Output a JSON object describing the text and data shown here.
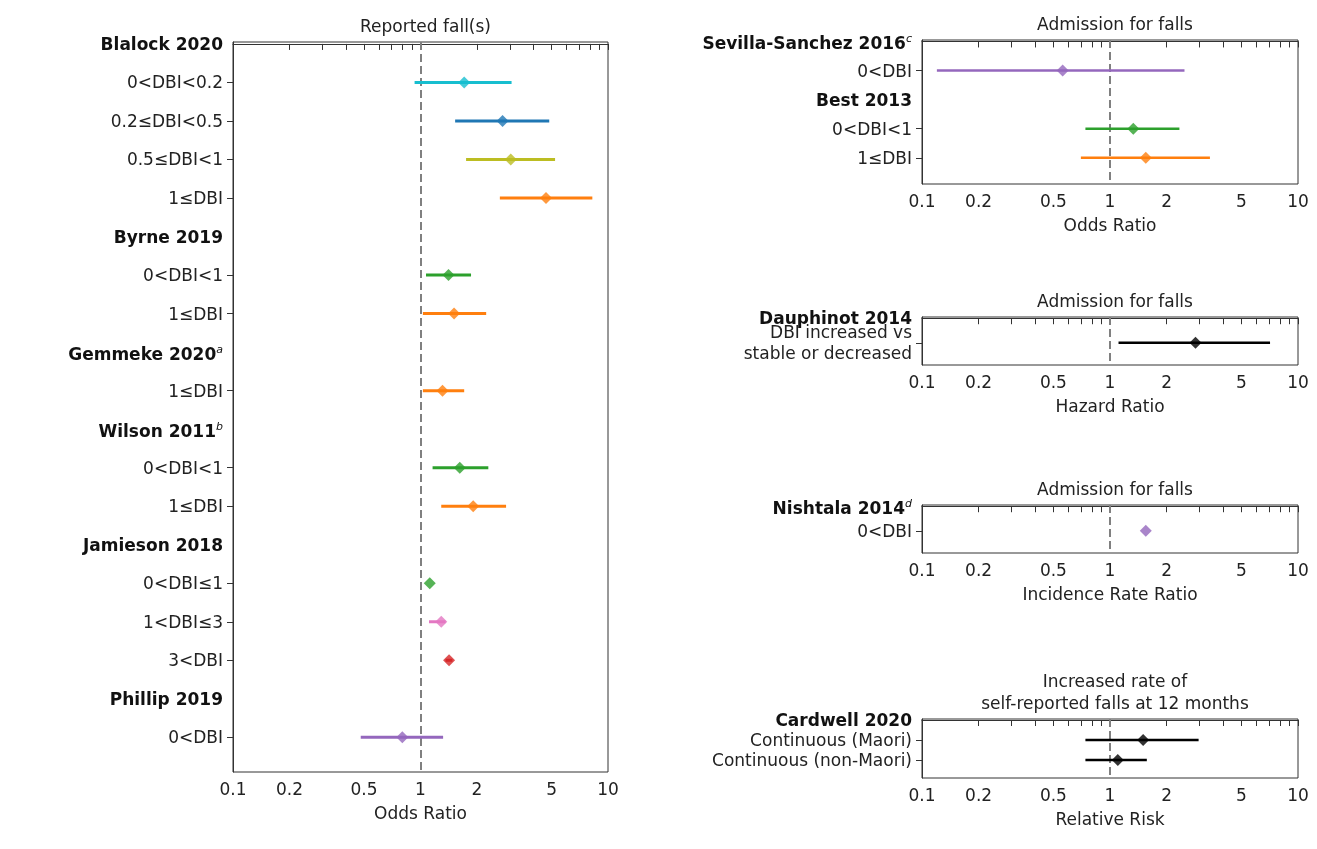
{
  "chart_data": [
    {
      "type": "scatter",
      "orientation": "horizontal",
      "title": "Reported fall(s)",
      "xlabel": "Odds Ratio",
      "log": "x",
      "marker": "diamond",
      "categories": [
        "Blalock 2020",
        "0<DBI<0.2",
        "0.2≤DBI<0.5",
        "0.5≤DBI<1",
        "1≤DBI",
        "Byrne 2019",
        "0<DBI<1",
        "1≤DBI",
        "Gemmeke 2020$^{a}$",
        "1≤DBI",
        "Wilson 2011$^{b}$",
        "0<DBI<1",
        "1≤DBI",
        "Jamieson 2018",
        "0<DBI≤1",
        "1<DBI≤3",
        "3<DBI",
        "Phillip 2019",
        "0<DBI"
      ],
      "values": [
        null,
        1.71,
        2.74,
        3.03,
        4.67,
        null,
        1.41,
        1.51,
        null,
        1.31,
        null,
        1.62,
        1.91,
        null,
        1.12,
        1.29,
        1.42,
        null,
        0.8
      ],
      "errors": [
        null,
        [
          0.93,
          3.06
        ],
        [
          1.53,
          4.86
        ],
        [
          1.75,
          5.22
        ],
        [
          2.65,
          8.25
        ],
        null,
        [
          1.07,
          1.86
        ],
        [
          1.03,
          2.24
        ],
        null,
        [
          1.03,
          1.71
        ],
        null,
        [
          1.16,
          2.3
        ],
        [
          1.29,
          2.86
        ],
        null,
        null,
        [
          1.11,
          1.36
        ],
        [
          1.36,
          1.48
        ],
        null,
        [
          0.48,
          1.32
        ]
      ],
      "colors": [
        null,
        "#17becf",
        "#1f77b4",
        "#bcbd22",
        "#ff7f0e",
        null,
        "#2ca02c",
        "#ff7f0e",
        null,
        "#ff7f0e",
        null,
        "#2ca02c",
        "#ff7f0e",
        null,
        "#2ca02c",
        "#e377c2",
        "#d62728",
        null,
        "#9467bd"
      ],
      "xlim": [
        0.1,
        10
      ],
      "xticks": [
        0.1,
        0.2,
        {
          "value": 0.3,
          "label": null
        },
        {
          "value": 0.4,
          "label": null
        },
        0.5,
        {
          "value": 0.6,
          "label": null
        },
        {
          "value": 0.7,
          "label": null
        },
        {
          "value": 0.8,
          "label": null
        },
        {
          "value": 0.9,
          "label": null
        },
        1,
        2,
        {
          "value": 3,
          "label": null
        },
        {
          "value": 4,
          "label": null
        },
        5,
        {
          "value": 6,
          "label": null
        },
        {
          "value": 7,
          "label": null
        },
        {
          "value": 8,
          "label": null
        },
        {
          "value": 9,
          "label": null
        },
        10
      ],
      "ref_lines": [
        {
          "axis": "x",
          "value": 1,
          "line_style": "dashed",
          "color": "#808080"
        }
      ]
    },
    {
      "type": "scatter",
      "orientation": "horizontal",
      "title": "Admission for falls",
      "xlabel": "Odds Ratio",
      "log": "x",
      "marker": "diamond",
      "categories": [
        "Sevilla-Sanchez 2016$^{c}$",
        "0<DBI",
        "Best 2013",
        "0<DBI<1",
        "1≤DBI"
      ],
      "values": [
        null,
        0.56,
        null,
        1.33,
        1.55
      ],
      "errors": [
        null,
        [
          0.12,
          2.49
        ],
        null,
        [
          0.74,
          2.34
        ],
        [
          0.7,
          3.4
        ]
      ],
      "colors": [
        null,
        "#9467bd",
        null,
        "#2ca02c",
        "#ff7f0e"
      ],
      "xlim": [
        0.1,
        10
      ],
      "xticks": [
        0.1,
        0.2,
        {
          "value": 0.3,
          "label": null
        },
        {
          "value": 0.4,
          "label": null
        },
        0.5,
        {
          "value": 0.6,
          "label": null
        },
        {
          "value": 0.7,
          "label": null
        },
        {
          "value": 0.8,
          "label": null
        },
        {
          "value": 0.9,
          "label": null
        },
        1,
        2,
        {
          "value": 3,
          "label": null
        },
        {
          "value": 4,
          "label": null
        },
        5,
        {
          "value": 6,
          "label": null
        },
        {
          "value": 7,
          "label": null
        },
        {
          "value": 8,
          "label": null
        },
        {
          "value": 9,
          "label": null
        },
        10
      ],
      "ref_lines": [
        {
          "axis": "x",
          "value": 1,
          "line_style": "dashed",
          "color": "#808080"
        }
      ]
    },
    {
      "type": "scatter",
      "orientation": "horizontal",
      "title": "Admission for falls",
      "xlabel": "Hazard Ratio",
      "log": "x",
      "marker": "diamond",
      "categories": [
        "Dauphinot 2014",
        "DBI increased vs\nstable or decreased"
      ],
      "values": [
        null,
        2.85
      ],
      "errors": [
        null,
        [
          1.11,
          7.1
        ]
      ],
      "colors": [
        null,
        "#000000"
      ],
      "xlim": [
        0.1,
        10
      ],
      "xticks": [
        0.1,
        0.2,
        {
          "value": 0.3,
          "label": null
        },
        {
          "value": 0.4,
          "label": null
        },
        0.5,
        {
          "value": 0.6,
          "label": null
        },
        {
          "value": 0.7,
          "label": null
        },
        {
          "value": 0.8,
          "label": null
        },
        {
          "value": 0.9,
          "label": null
        },
        1,
        2,
        {
          "value": 3,
          "label": null
        },
        {
          "value": 4,
          "label": null
        },
        5,
        {
          "value": 6,
          "label": null
        },
        {
          "value": 7,
          "label": null
        },
        {
          "value": 8,
          "label": null
        },
        {
          "value": 9,
          "label": null
        },
        10
      ],
      "ref_lines": [
        {
          "axis": "x",
          "value": 1,
          "line_style": "dashed",
          "color": "#808080"
        }
      ]
    },
    {
      "type": "scatter",
      "orientation": "horizontal",
      "title": "Admission for falls",
      "xlabel": "Incidence Rate Ratio",
      "log": "x",
      "marker": "diamond",
      "categories": [
        "Nishtala 2014$^{d}$",
        "0<DBI"
      ],
      "values": [
        null,
        1.55
      ],
      "colors": [
        null,
        "#9467bd"
      ],
      "xlim": [
        0.1,
        10
      ],
      "xticks": [
        0.1,
        0.2,
        {
          "value": 0.3,
          "label": null
        },
        {
          "value": 0.4,
          "label": null
        },
        0.5,
        {
          "value": 0.6,
          "label": null
        },
        {
          "value": 0.7,
          "label": null
        },
        {
          "value": 0.8,
          "label": null
        },
        {
          "value": 0.9,
          "label": null
        },
        1,
        2,
        {
          "value": 3,
          "label": null
        },
        {
          "value": 4,
          "label": null
        },
        5,
        {
          "value": 6,
          "label": null
        },
        {
          "value": 7,
          "label": null
        },
        {
          "value": 8,
          "label": null
        },
        {
          "value": 9,
          "label": null
        },
        10
      ],
      "ref_lines": [
        {
          "axis": "x",
          "value": 1,
          "line_style": "dashed",
          "color": "#808080"
        }
      ]
    },
    {
      "type": "scatter",
      "orientation": "horizontal",
      "title": "Increased rate of\nself-reported falls at 12 months",
      "xlabel": "Relative Risk",
      "log": "x",
      "marker": "diamond",
      "categories": [
        "Cardwell 2020",
        "Continuous (Maori)",
        "Continuous (non-Maori)"
      ],
      "values": [
        null,
        1.5,
        1.1
      ],
      "errors": [
        null,
        [
          0.74,
          2.96
        ],
        [
          0.74,
          1.57
        ]
      ],
      "colors": [
        null,
        "#000000",
        "#000000"
      ],
      "xlim": [
        0.1,
        10
      ],
      "xticks": [
        0.1,
        0.2,
        {
          "value": 0.3,
          "label": null
        },
        {
          "value": 0.4,
          "label": null
        },
        0.5,
        {
          "value": 0.6,
          "label": null
        },
        {
          "value": 0.7,
          "label": null
        },
        {
          "value": 0.8,
          "label": null
        },
        {
          "value": 0.9,
          "label": null
        },
        1,
        2,
        {
          "value": 3,
          "label": null
        },
        {
          "value": 4,
          "label": null
        },
        5,
        {
          "value": 6,
          "label": null
        },
        {
          "value": 7,
          "label": null
        },
        {
          "value": 8,
          "label": null
        },
        {
          "value": 9,
          "label": null
        },
        10
      ],
      "ref_lines": [
        {
          "axis": "x",
          "value": 1,
          "line_style": "dashed",
          "color": "#808080"
        }
      ]
    }
  ]
}
